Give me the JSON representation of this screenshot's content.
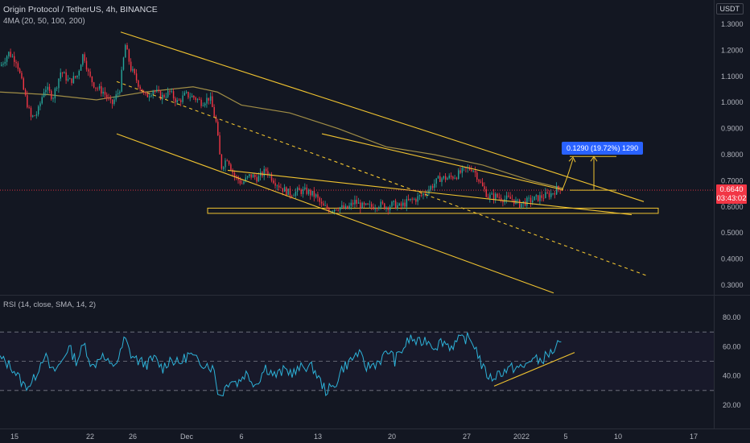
{
  "header": {
    "title": "Origin Protocol / TetherUS, 4h, BINANCE",
    "indicators": "4MA (20, 50, 100, 200)",
    "currency": "USDT"
  },
  "rsi_header": "RSI (14, close, SMA, 14, 2)",
  "last_price": {
    "value": "0.6640",
    "countdown": "03:43:02"
  },
  "measure_label": "0.1290 (19.72%) 1290",
  "colors": {
    "background": "#131722",
    "up": "#26a69a",
    "down": "#f23645",
    "trendline": "#f0c330",
    "ma": "#a08d46",
    "rsi": "#2db2d8",
    "measure": "#2962ff"
  },
  "chart_data": [
    {
      "type": "candlestick",
      "title": "Origin Protocol / TetherUS, 4h, BINANCE",
      "ylim": [
        0.27,
        1.33
      ],
      "y_ticks": [
        "1.3000",
        "1.2000",
        "1.1000",
        "1.0000",
        "0.9000",
        "0.8000",
        "0.7000",
        "0.6000",
        "0.5000",
        "0.4000",
        "0.3000"
      ],
      "x_ticks": [
        "15",
        "22",
        "26",
        "Dec",
        "6",
        "13",
        "20",
        "27",
        "2022",
        "5",
        "10",
        "17"
      ],
      "last_close": 0.664,
      "support_zone": [
        0.575,
        0.595
      ],
      "measure": {
        "from": 0.664,
        "to": 0.793,
        "change": 0.129,
        "percent": 19.72
      },
      "price_path": [
        [
          0,
          1.14
        ],
        [
          10,
          1.19
        ],
        [
          20,
          1.16
        ],
        [
          30,
          1.03
        ],
        [
          38,
          0.94
        ],
        [
          46,
          0.96
        ],
        [
          55,
          1.06
        ],
        [
          65,
          1.02
        ],
        [
          75,
          1.12
        ],
        [
          85,
          1.08
        ],
        [
          95,
          1.1
        ],
        [
          103,
          1.19
        ],
        [
          110,
          1.1
        ],
        [
          118,
          1.06
        ],
        [
          128,
          1.04
        ],
        [
          138,
          0.99
        ],
        [
          148,
          1.05
        ],
        [
          155,
          1.22
        ],
        [
          162,
          1.13
        ],
        [
          170,
          1.08
        ],
        [
          180,
          1.02
        ],
        [
          190,
          1.05
        ],
        [
          200,
          1.02
        ],
        [
          210,
          1.04
        ],
        [
          220,
          1.0
        ],
        [
          230,
          1.03
        ],
        [
          240,
          1.02
        ],
        [
          250,
          1.0
        ],
        [
          260,
          1.02
        ],
        [
          268,
          0.92
        ],
        [
          274,
          0.75
        ],
        [
          282,
          0.79
        ],
        [
          290,
          0.72
        ],
        [
          300,
          0.69
        ],
        [
          310,
          0.72
        ],
        [
          320,
          0.71
        ],
        [
          330,
          0.74
        ],
        [
          340,
          0.7
        ],
        [
          350,
          0.67
        ],
        [
          360,
          0.65
        ],
        [
          370,
          0.66
        ],
        [
          380,
          0.66
        ],
        [
          392,
          0.64
        ],
        [
          400,
          0.6
        ],
        [
          410,
          0.59
        ],
        [
          420,
          0.6
        ],
        [
          430,
          0.59
        ],
        [
          440,
          0.62
        ],
        [
          450,
          0.6
        ],
        [
          460,
          0.6
        ],
        [
          470,
          0.61
        ],
        [
          480,
          0.6
        ],
        [
          488,
          0.61
        ],
        [
          496,
          0.6
        ],
        [
          506,
          0.62
        ],
        [
          516,
          0.63
        ],
        [
          526,
          0.65
        ],
        [
          536,
          0.68
        ],
        [
          546,
          0.71
        ],
        [
          556,
          0.71
        ],
        [
          566,
          0.72
        ],
        [
          576,
          0.74
        ],
        [
          586,
          0.75
        ],
        [
          592,
          0.72
        ],
        [
          598,
          0.68
        ],
        [
          606,
          0.64
        ],
        [
          616,
          0.64
        ],
        [
          626,
          0.63
        ],
        [
          636,
          0.63
        ],
        [
          644,
          0.61
        ],
        [
          654,
          0.62
        ],
        [
          664,
          0.63
        ],
        [
          674,
          0.64
        ],
        [
          684,
          0.65
        ],
        [
          692,
          0.67
        ],
        [
          696,
          0.664
        ]
      ],
      "ma_path": [
        [
          0,
          1.04
        ],
        [
          60,
          1.03
        ],
        [
          120,
          1.01
        ],
        [
          180,
          1.04
        ],
        [
          240,
          1.06
        ],
        [
          270,
          1.04
        ],
        [
          300,
          0.99
        ],
        [
          360,
          0.96
        ],
        [
          420,
          0.9
        ],
        [
          480,
          0.83
        ],
        [
          540,
          0.8
        ],
        [
          600,
          0.76
        ],
        [
          660,
          0.7
        ],
        [
          700,
          0.67
        ]
      ],
      "trendlines": [
        {
          "name": "channel-top",
          "points": [
            [
              150,
              1.27
            ],
            [
              800,
              0.62
            ]
          ],
          "style": "solid"
        },
        {
          "name": "channel-mid",
          "points": [
            [
              145,
              1.08
            ],
            [
              805,
              0.335
            ]
          ],
          "style": "dashed"
        },
        {
          "name": "channel-bottom",
          "points": [
            [
              145,
              0.88
            ],
            [
              688,
              0.27
            ]
          ],
          "style": "solid"
        },
        {
          "name": "support-tangent",
          "points": [
            [
              283,
              0.74
            ],
            [
              785,
              0.57
            ]
          ],
          "style": "solid"
        },
        {
          "name": "upper-tangent",
          "points": [
            [
              400,
              0.88
            ],
            [
              700,
              0.665
            ]
          ],
          "style": "solid"
        }
      ]
    },
    {
      "type": "line",
      "title": "RSI (14, close, SMA, 14, 2)",
      "ylim": [
        12,
        92
      ],
      "y_ticks": [
        "80.00",
        "60.00",
        "40.00",
        "20.00"
      ],
      "bands": [
        70,
        50,
        30
      ],
      "rsi_path": [
        [
          0,
          52
        ],
        [
          15,
          46
        ],
        [
          30,
          33
        ],
        [
          40,
          35
        ],
        [
          55,
          55
        ],
        [
          65,
          42
        ],
        [
          75,
          48
        ],
        [
          85,
          60
        ],
        [
          95,
          50
        ],
        [
          105,
          62
        ],
        [
          115,
          45
        ],
        [
          125,
          55
        ],
        [
          138,
          46
        ],
        [
          148,
          52
        ],
        [
          155,
          66
        ],
        [
          162,
          55
        ],
        [
          172,
          50
        ],
        [
          182,
          48
        ],
        [
          192,
          52
        ],
        [
          202,
          45
        ],
        [
          212,
          52
        ],
        [
          222,
          48
        ],
        [
          235,
          55
        ],
        [
          245,
          50
        ],
        [
          258,
          48
        ],
        [
          266,
          44
        ],
        [
          272,
          26
        ],
        [
          278,
          30
        ],
        [
          286,
          38
        ],
        [
          295,
          35
        ],
        [
          305,
          42
        ],
        [
          318,
          34
        ],
        [
          330,
          46
        ],
        [
          342,
          40
        ],
        [
          354,
          44
        ],
        [
          366,
          42
        ],
        [
          378,
          47
        ],
        [
          390,
          45
        ],
        [
          398,
          36
        ],
        [
          405,
          30
        ],
        [
          415,
          32
        ],
        [
          425,
          45
        ],
        [
          435,
          50
        ],
        [
          445,
          56
        ],
        [
          455,
          46
        ],
        [
          465,
          48
        ],
        [
          475,
          52
        ],
        [
          485,
          58
        ],
        [
          490,
          50
        ],
        [
          500,
          58
        ],
        [
          510,
          66
        ],
        [
          520,
          62
        ],
        [
          530,
          65
        ],
        [
          540,
          60
        ],
        [
          550,
          64
        ],
        [
          560,
          60
        ],
        [
          570,
          64
        ],
        [
          580,
          66
        ],
        [
          588,
          63
        ],
        [
          594,
          55
        ],
        [
          600,
          45
        ],
        [
          610,
          38
        ],
        [
          620,
          42
        ],
        [
          630,
          44
        ],
        [
          640,
          46
        ],
        [
          650,
          45
        ],
        [
          660,
          52
        ],
        [
          670,
          50
        ],
        [
          680,
          54
        ],
        [
          690,
          58
        ],
        [
          694,
          62
        ],
        [
          698,
          59
        ]
      ],
      "trendlines": [
        {
          "name": "rsi-rising-support",
          "points": [
            [
              614,
              33
            ],
            [
              714,
              56
            ]
          ],
          "style": "solid"
        }
      ]
    }
  ]
}
